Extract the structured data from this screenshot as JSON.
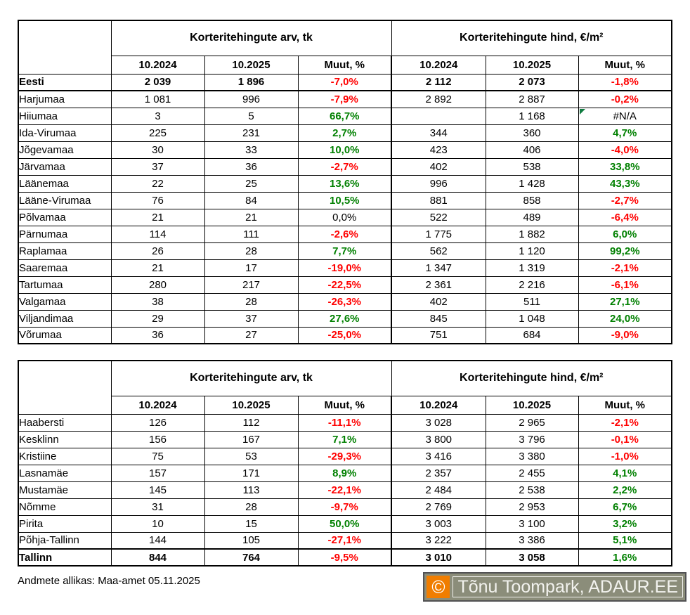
{
  "colors": {
    "negative": "#FF0000",
    "positive": "#008000",
    "error_triangle": "#107C41",
    "watermark_bg": "#8B8D7A",
    "watermark_orange": "#F07D00",
    "watermark_text": "#F2F2EE"
  },
  "tables": [
    {
      "id": "counties",
      "group_headers": [
        "Korteritehingute arv, tk",
        "Korteritehingute hind, €/m²"
      ],
      "col_headers": [
        "10.2024",
        "10.2025",
        "Muut, %",
        "10.2024",
        "10.2025",
        "Muut, %"
      ],
      "rows": [
        {
          "name": "Eesti",
          "summary": true,
          "thick": "bottom",
          "cells": [
            {
              "v": "2 039"
            },
            {
              "v": "1 896"
            },
            {
              "v": "-7,0%",
              "s": "red"
            },
            {
              "v": "2 112"
            },
            {
              "v": "2 073"
            },
            {
              "v": "-1,8%",
              "s": "red"
            }
          ]
        },
        {
          "name": "Harjumaa",
          "cells": [
            {
              "v": "1 081"
            },
            {
              "v": "996"
            },
            {
              "v": "-7,9%",
              "s": "red"
            },
            {
              "v": "2 892"
            },
            {
              "v": "2 887"
            },
            {
              "v": "-0,2%",
              "s": "red"
            }
          ]
        },
        {
          "name": "Hiiumaa",
          "cells": [
            {
              "v": "3"
            },
            {
              "v": "5"
            },
            {
              "v": "66,7%",
              "s": "green"
            },
            {
              "v": ""
            },
            {
              "v": "1 168"
            },
            {
              "v": "#N/A",
              "tri": true
            }
          ]
        },
        {
          "name": "Ida-Virumaa",
          "cells": [
            {
              "v": "225"
            },
            {
              "v": "231"
            },
            {
              "v": "2,7%",
              "s": "green"
            },
            {
              "v": "344"
            },
            {
              "v": "360"
            },
            {
              "v": "4,7%",
              "s": "green"
            }
          ]
        },
        {
          "name": "Jõgevamaa",
          "cells": [
            {
              "v": "30"
            },
            {
              "v": "33"
            },
            {
              "v": "10,0%",
              "s": "green"
            },
            {
              "v": "423"
            },
            {
              "v": "406"
            },
            {
              "v": "-4,0%",
              "s": "red"
            }
          ]
        },
        {
          "name": "Järvamaa",
          "cells": [
            {
              "v": "37"
            },
            {
              "v": "36"
            },
            {
              "v": "-2,7%",
              "s": "red"
            },
            {
              "v": "402"
            },
            {
              "v": "538"
            },
            {
              "v": "33,8%",
              "s": "green"
            }
          ]
        },
        {
          "name": "Läänemaa",
          "cells": [
            {
              "v": "22"
            },
            {
              "v": "25"
            },
            {
              "v": "13,6%",
              "s": "green"
            },
            {
              "v": "996"
            },
            {
              "v": "1 428"
            },
            {
              "v": "43,3%",
              "s": "green"
            }
          ]
        },
        {
          "name": "Lääne-Virumaa",
          "cells": [
            {
              "v": "76"
            },
            {
              "v": "84"
            },
            {
              "v": "10,5%",
              "s": "green"
            },
            {
              "v": "881"
            },
            {
              "v": "858"
            },
            {
              "v": "-2,7%",
              "s": "red"
            }
          ]
        },
        {
          "name": "Põlvamaa",
          "cells": [
            {
              "v": "21"
            },
            {
              "v": "21"
            },
            {
              "v": "0,0%"
            },
            {
              "v": "522"
            },
            {
              "v": "489"
            },
            {
              "v": "-6,4%",
              "s": "red"
            }
          ]
        },
        {
          "name": "Pärnumaa",
          "cells": [
            {
              "v": "114"
            },
            {
              "v": "111"
            },
            {
              "v": "-2,6%",
              "s": "red"
            },
            {
              "v": "1 775"
            },
            {
              "v": "1 882"
            },
            {
              "v": "6,0%",
              "s": "green"
            }
          ]
        },
        {
          "name": "Raplamaa",
          "cells": [
            {
              "v": "26"
            },
            {
              "v": "28"
            },
            {
              "v": "7,7%",
              "s": "green"
            },
            {
              "v": "562"
            },
            {
              "v": "1 120"
            },
            {
              "v": "99,2%",
              "s": "green"
            }
          ]
        },
        {
          "name": "Saaremaa",
          "cells": [
            {
              "v": "21"
            },
            {
              "v": "17"
            },
            {
              "v": "-19,0%",
              "s": "red"
            },
            {
              "v": "1 347"
            },
            {
              "v": "1 319"
            },
            {
              "v": "-2,1%",
              "s": "red"
            }
          ]
        },
        {
          "name": "Tartumaa",
          "cells": [
            {
              "v": "280"
            },
            {
              "v": "217"
            },
            {
              "v": "-22,5%",
              "s": "red"
            },
            {
              "v": "2 361"
            },
            {
              "v": "2 216"
            },
            {
              "v": "-6,1%",
              "s": "red"
            }
          ]
        },
        {
          "name": "Valgamaa",
          "cells": [
            {
              "v": "38"
            },
            {
              "v": "28"
            },
            {
              "v": "-26,3%",
              "s": "red"
            },
            {
              "v": "402"
            },
            {
              "v": "511"
            },
            {
              "v": "27,1%",
              "s": "green"
            }
          ]
        },
        {
          "name": "Viljandimaa",
          "cells": [
            {
              "v": "29"
            },
            {
              "v": "37"
            },
            {
              "v": "27,6%",
              "s": "green"
            },
            {
              "v": "845"
            },
            {
              "v": "1 048"
            },
            {
              "v": "24,0%",
              "s": "green"
            }
          ]
        },
        {
          "name": "Võrumaa",
          "cells": [
            {
              "v": "36"
            },
            {
              "v": "27"
            },
            {
              "v": "-25,0%",
              "s": "red"
            },
            {
              "v": "751"
            },
            {
              "v": "684"
            },
            {
              "v": "-9,0%",
              "s": "red"
            }
          ]
        }
      ]
    },
    {
      "id": "tallinn-districts",
      "group_headers": [
        "Korteritehingute arv, tk",
        "Korteritehingute hind, €/m²"
      ],
      "col_headers": [
        "10.2024",
        "10.2025",
        "Muut, %",
        "10.2024",
        "10.2025",
        "Muut, %"
      ],
      "rows": [
        {
          "name": "Haabersti",
          "cells": [
            {
              "v": "126"
            },
            {
              "v": "112"
            },
            {
              "v": "-11,1%",
              "s": "red"
            },
            {
              "v": "3 028"
            },
            {
              "v": "2 965"
            },
            {
              "v": "-2,1%",
              "s": "red"
            }
          ]
        },
        {
          "name": "Kesklinn",
          "cells": [
            {
              "v": "156"
            },
            {
              "v": "167"
            },
            {
              "v": "7,1%",
              "s": "green"
            },
            {
              "v": "3 800"
            },
            {
              "v": "3 796"
            },
            {
              "v": "-0,1%",
              "s": "red"
            }
          ]
        },
        {
          "name": "Kristiine",
          "cells": [
            {
              "v": "75"
            },
            {
              "v": "53"
            },
            {
              "v": "-29,3%",
              "s": "red"
            },
            {
              "v": "3 416"
            },
            {
              "v": "3 380"
            },
            {
              "v": "-1,0%",
              "s": "red"
            }
          ]
        },
        {
          "name": "Lasnamäe",
          "cells": [
            {
              "v": "157"
            },
            {
              "v": "171"
            },
            {
              "v": "8,9%",
              "s": "green"
            },
            {
              "v": "2 357"
            },
            {
              "v": "2 455"
            },
            {
              "v": "4,1%",
              "s": "green"
            }
          ]
        },
        {
          "name": "Mustamäe",
          "cells": [
            {
              "v": "145"
            },
            {
              "v": "113"
            },
            {
              "v": "-22,1%",
              "s": "red"
            },
            {
              "v": "2 484"
            },
            {
              "v": "2 538"
            },
            {
              "v": "2,2%",
              "s": "green"
            }
          ]
        },
        {
          "name": "Nõmme",
          "cells": [
            {
              "v": "31"
            },
            {
              "v": "28"
            },
            {
              "v": "-9,7%",
              "s": "red"
            },
            {
              "v": "2 769"
            },
            {
              "v": "2 953"
            },
            {
              "v": "6,7%",
              "s": "green"
            }
          ]
        },
        {
          "name": "Pirita",
          "cells": [
            {
              "v": "10"
            },
            {
              "v": "15"
            },
            {
              "v": "50,0%",
              "s": "green"
            },
            {
              "v": "3 003"
            },
            {
              "v": "3 100"
            },
            {
              "v": "3,2%",
              "s": "green"
            }
          ]
        },
        {
          "name": "Põhja-Tallinn",
          "cells": [
            {
              "v": "144"
            },
            {
              "v": "105"
            },
            {
              "v": "-27,1%",
              "s": "red"
            },
            {
              "v": "3 222"
            },
            {
              "v": "3 386"
            },
            {
              "v": "5,1%",
              "s": "green"
            }
          ]
        },
        {
          "name": "Tallinn",
          "summary": true,
          "thick": "top",
          "cells": [
            {
              "v": "844"
            },
            {
              "v": "764"
            },
            {
              "v": "-9,5%",
              "s": "red"
            },
            {
              "v": "3 010"
            },
            {
              "v": "3 058"
            },
            {
              "v": "1,6%",
              "s": "green"
            }
          ]
        }
      ]
    }
  ],
  "footer": {
    "source": "Andmete allikas: Maa-amet 05.11.2025",
    "watermark": {
      "copyright": "©",
      "text": "Tõnu Toompark, ADAUR.EE"
    }
  }
}
